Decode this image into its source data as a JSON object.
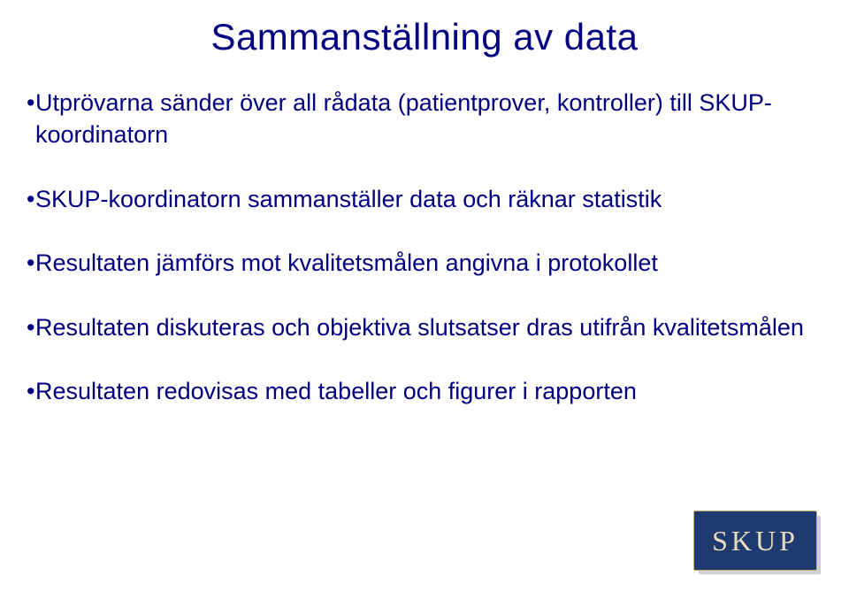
{
  "title": "Sammanställning av data",
  "title_color": "#000080",
  "title_fontsize": 42,
  "body_color": "#000080",
  "body_fontsize": 27,
  "background_color": "#ffffff",
  "bullets": [
    "Utprövarna sänder över all rådata (patientprover, kontroller) till SKUP-koordinatorn",
    "SKUP-koordinatorn sammanställer data och räknar statistik",
    "Resultaten jämförs mot kvalitetsmålen angivna i protokollet",
    "Resultaten diskuteras och objektiva slutsatser dras utifrån kvalitetsmålen",
    "Resultaten redovisas med tabeller och figurer i rapporten"
  ],
  "logo": {
    "text": "SKUP",
    "bg_color": "#1f3a6e",
    "text_color": "#e8dcc0",
    "border_color": "#c8b070",
    "shadow_color": "#d0d0d0"
  }
}
